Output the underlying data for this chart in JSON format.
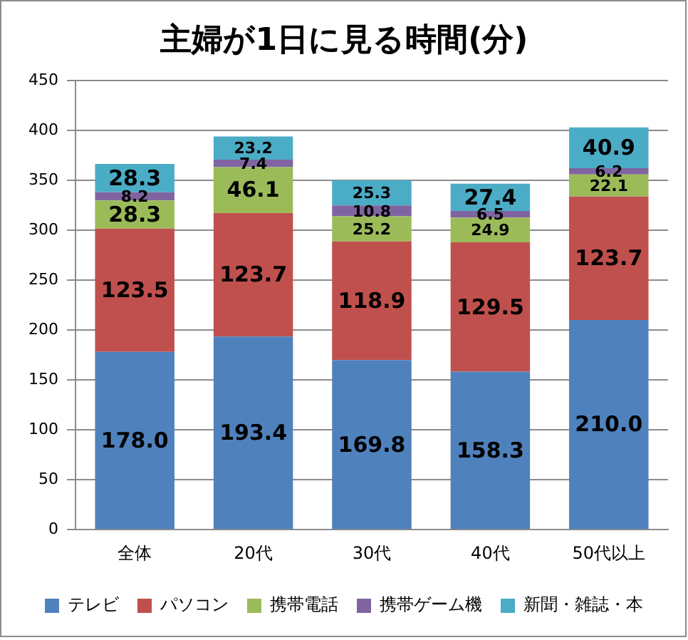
{
  "chart_data": {
    "type": "bar",
    "title": "主婦が1日に見る時間(分)",
    "categories": [
      "全体",
      "20代",
      "30代",
      "40代",
      "50代以上"
    ],
    "series": [
      {
        "name": "テレビ",
        "color": "#4f81bd",
        "values": [
          178.0,
          193.4,
          169.8,
          158.3,
          210.0
        ],
        "value_labels": [
          "178.0",
          "193.4",
          "169.8",
          "158.3",
          "210.0"
        ]
      },
      {
        "name": "パソコン",
        "color": "#c0504d",
        "values": [
          123.5,
          123.7,
          118.9,
          129.5,
          123.7
        ],
        "value_labels": [
          "123.5",
          "123.7",
          "118.9",
          "129.5",
          "123.7"
        ]
      },
      {
        "name": "携帯電話",
        "color": "#9bbb59",
        "values": [
          28.3,
          46.1,
          25.2,
          24.9,
          22.1
        ],
        "value_labels": [
          "28.3",
          "46.1",
          "25.2",
          "24.9",
          "22.1"
        ]
      },
      {
        "name": "携帯ゲーム機",
        "color": "#8064a2",
        "values": [
          8.2,
          7.4,
          10.8,
          6.5,
          6.2
        ],
        "value_labels": [
          "8.2",
          "7.4",
          "10.8",
          "6.5",
          "6.2"
        ]
      },
      {
        "name": "新聞・雑誌・本",
        "color": "#4bacc6",
        "values": [
          28.3,
          23.2,
          25.3,
          27.4,
          40.9
        ],
        "value_labels": [
          "28.3",
          "23.2",
          "25.3",
          "27.4",
          "40.9"
        ]
      }
    ],
    "stacked": true,
    "ylim": [
      0,
      450
    ],
    "yticks": [
      0,
      50,
      100,
      150,
      200,
      250,
      300,
      350,
      400,
      450
    ],
    "grid": "y",
    "legend": "bottom"
  }
}
